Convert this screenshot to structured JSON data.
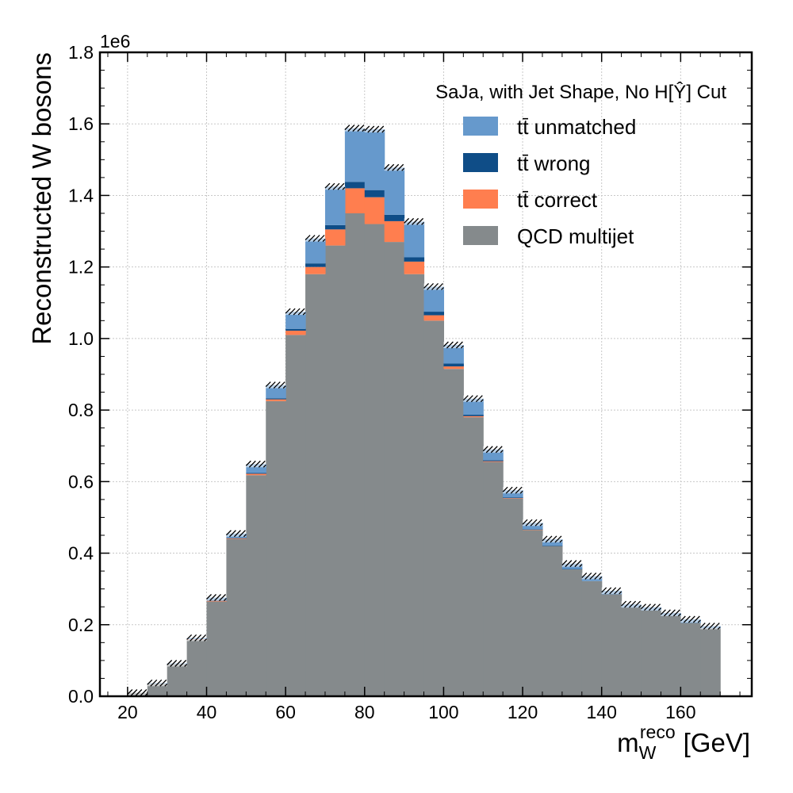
{
  "chart_data": {
    "type": "bar",
    "subtype": "stacked-histogram",
    "title": "",
    "annotation": "SaJa, with Jet Shape, No H[Ŷ] Cut",
    "xlabel": "m_W^reco [GeV]",
    "xlabel_main": "m",
    "xlabel_sub": "W",
    "xlabel_sup": "reco",
    "xlabel_unit": "[GeV]",
    "ylabel": "Reconstructed W bosons",
    "y_offset_label": "1e6",
    "y_scale": 1000000,
    "xlim": [
      13,
      178
    ],
    "ylim": [
      0,
      1.8
    ],
    "xticks": [
      20,
      40,
      60,
      80,
      100,
      120,
      140,
      160
    ],
    "yticks": [
      0.0,
      0.2,
      0.4,
      0.6,
      0.8,
      1.0,
      1.2,
      1.4,
      1.6,
      1.8
    ],
    "ytick_labels": [
      "0.0",
      "0.2",
      "0.4",
      "0.6",
      "0.8",
      "1.0",
      "1.2",
      "1.4",
      "1.6",
      "1.8"
    ],
    "grid": true,
    "legend_position": "top-right",
    "bin_edges": [
      20,
      25,
      30,
      35,
      40,
      45,
      50,
      55,
      60,
      65,
      70,
      75,
      80,
      85,
      90,
      95,
      100,
      105,
      110,
      115,
      120,
      125,
      130,
      135,
      140,
      145,
      150,
      155,
      160,
      165,
      170
    ],
    "series": [
      {
        "name": "QCD multijet",
        "color": "#858a8c",
        "values": [
          0.01,
          0.035,
          0.09,
          0.158,
          0.265,
          0.44,
          0.618,
          0.825,
          1.01,
          1.18,
          1.26,
          1.35,
          1.32,
          1.27,
          1.18,
          1.05,
          0.915,
          0.78,
          0.655,
          0.553,
          0.465,
          0.42,
          0.355,
          0.322,
          0.285,
          0.248,
          0.24,
          0.225,
          0.205,
          0.19
        ]
      },
      {
        "name": "tt̄ correct",
        "color": "#ff7e4f",
        "values": [
          0.0,
          0.0,
          0.0,
          0.001,
          0.002,
          0.002,
          0.004,
          0.005,
          0.012,
          0.02,
          0.045,
          0.07,
          0.075,
          0.058,
          0.035,
          0.015,
          0.007,
          0.003,
          0.002,
          0.001,
          0.001,
          0.0,
          0.0,
          0.0,
          0.0,
          0.0,
          0.0,
          0.0,
          0.0,
          0.0
        ]
      },
      {
        "name": "tt̄ wrong",
        "color": "#0f4d87",
        "values": [
          0.0,
          0.0,
          0.0,
          0.0,
          0.001,
          0.001,
          0.002,
          0.003,
          0.005,
          0.01,
          0.012,
          0.018,
          0.02,
          0.018,
          0.012,
          0.01,
          0.008,
          0.004,
          0.003,
          0.002,
          0.001,
          0.001,
          0.001,
          0.0,
          0.0,
          0.0,
          0.0,
          0.0,
          0.0,
          0.0
        ]
      },
      {
        "name": "tt̄ unmatched",
        "color": "#6699cc",
        "values": [
          0.0,
          0.002,
          0.002,
          0.004,
          0.008,
          0.012,
          0.025,
          0.037,
          0.048,
          0.07,
          0.108,
          0.15,
          0.17,
          0.132,
          0.1,
          0.07,
          0.052,
          0.045,
          0.03,
          0.02,
          0.018,
          0.018,
          0.015,
          0.014,
          0.01,
          0.009,
          0.009,
          0.008,
          0.01,
          0.006
        ]
      }
    ],
    "legend_order": [
      "tt̄ unmatched",
      "tt̄ wrong",
      "tt̄ correct",
      "QCD multijet"
    ]
  }
}
